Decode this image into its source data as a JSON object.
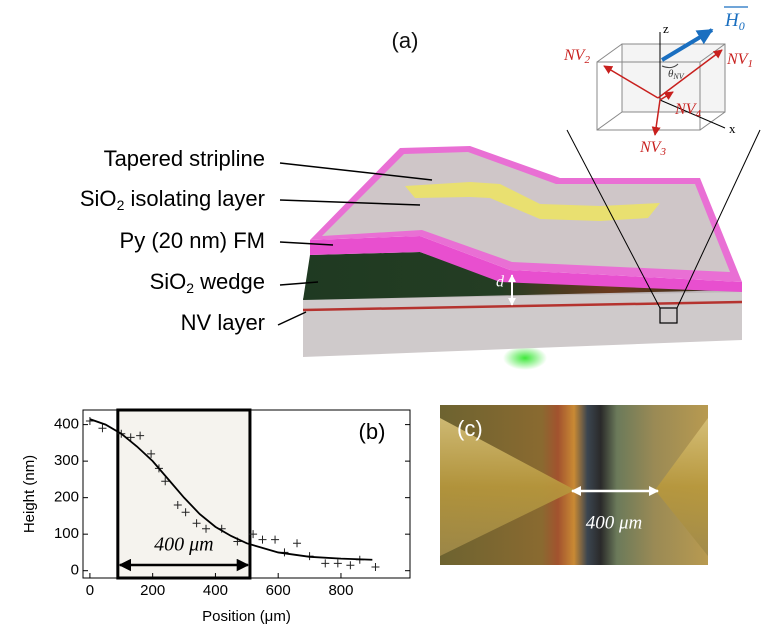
{
  "panel_a": {
    "label": "(a)",
    "layers": [
      {
        "text": "Tapered stripline"
      },
      {
        "text": "SiO",
        "sub": "2",
        "rest": " isolating layer"
      },
      {
        "text": "Py (20 nm) FM"
      },
      {
        "text": "SiO",
        "sub": "2",
        "rest": " wedge"
      },
      {
        "text": "NV layer"
      }
    ],
    "d_label": "d",
    "inset": {
      "field": "H",
      "field_sub": "0",
      "z": "z",
      "x": "x",
      "theta": "θ",
      "theta_sub": "NV",
      "nv": [
        {
          "text": "NV",
          "sub": "1"
        },
        {
          "text": "NV",
          "sub": "2"
        },
        {
          "text": "NV",
          "sub": "3"
        },
        {
          "text": "NV",
          "sub": "4"
        }
      ]
    }
  },
  "chart_data": {
    "type": "scatter",
    "label": "(b)",
    "x_label": "Position (μm)",
    "y_label": "Height (nm)",
    "xlim": [
      -22,
      1020
    ],
    "ylim": [
      -20,
      440
    ],
    "xticks": [
      0,
      200,
      400,
      600,
      800
    ],
    "yticks": [
      0,
      100,
      200,
      300,
      400
    ],
    "annotation": {
      "text": "400 μm",
      "range": [
        89,
        510
      ],
      "color": "#f5f3ee"
    },
    "series": [
      {
        "type": "scatter",
        "color": "#222222",
        "x": [
          0,
          40,
          100,
          130,
          160,
          195,
          220,
          240,
          280,
          305,
          340,
          370,
          420,
          470,
          520,
          550,
          590,
          620,
          660,
          700,
          750,
          790,
          830,
          860,
          910
        ],
        "values": [
          410,
          390,
          375,
          365,
          370,
          320,
          280,
          245,
          180,
          160,
          130,
          115,
          115,
          80,
          100,
          85,
          85,
          50,
          75,
          40,
          20,
          20,
          15,
          30,
          10
        ]
      },
      {
        "type": "line",
        "color": "#000000",
        "x": [
          0,
          50,
          100,
          150,
          200,
          250,
          300,
          350,
          400,
          450,
          500,
          600,
          700,
          800,
          900
        ],
        "values": [
          415,
          400,
          375,
          340,
          300,
          250,
          200,
          155,
          120,
          95,
          75,
          50,
          38,
          33,
          30
        ]
      }
    ]
  },
  "panel_c": {
    "label": "(c)",
    "scale": "400 μm"
  }
}
